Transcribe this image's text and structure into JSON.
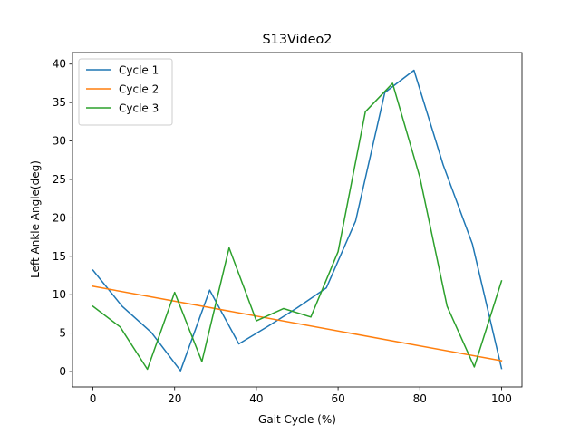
{
  "chart_data": {
    "type": "line",
    "title": "S13Video2",
    "xlabel": "Gait Cycle (%)",
    "ylabel": "Left Ankle Angle(deg)",
    "xlim": [
      -5,
      105
    ],
    "ylim": [
      -2,
      41.5
    ],
    "xticks": [
      0,
      20,
      40,
      60,
      80,
      100
    ],
    "yticks": [
      0,
      5,
      10,
      15,
      20,
      25,
      30,
      35,
      40
    ],
    "grid": false,
    "legend_position": "upper-left",
    "series": [
      {
        "name": "Cycle 1",
        "color": "#1f77b4",
        "x": [
          0,
          7.14,
          14.29,
          21.43,
          28.57,
          35.71,
          42.86,
          50,
          57.14,
          64.29,
          71.43,
          78.57,
          85.71,
          92.86,
          100
        ],
        "y": [
          13.2,
          8.5,
          5.1,
          0.1,
          10.6,
          3.6,
          5.9,
          8.3,
          10.9,
          19.6,
          36.3,
          39.2,
          26.9,
          16.6,
          0.4
        ]
      },
      {
        "name": "Cycle 2",
        "color": "#ff7f0e",
        "x": [
          0,
          100
        ],
        "y": [
          11.1,
          1.4
        ]
      },
      {
        "name": "Cycle 3",
        "color": "#2ca02c",
        "x": [
          0,
          6.67,
          13.33,
          20,
          26.67,
          33.33,
          40,
          46.67,
          53.33,
          60,
          66.67,
          73.33,
          80,
          86.67,
          93.33,
          100
        ],
        "y": [
          8.5,
          5.8,
          0.3,
          10.3,
          1.3,
          16.1,
          6.6,
          8.2,
          7.1,
          15.6,
          33.8,
          37.5,
          25.3,
          8.5,
          0.6,
          11.8
        ]
      }
    ]
  }
}
